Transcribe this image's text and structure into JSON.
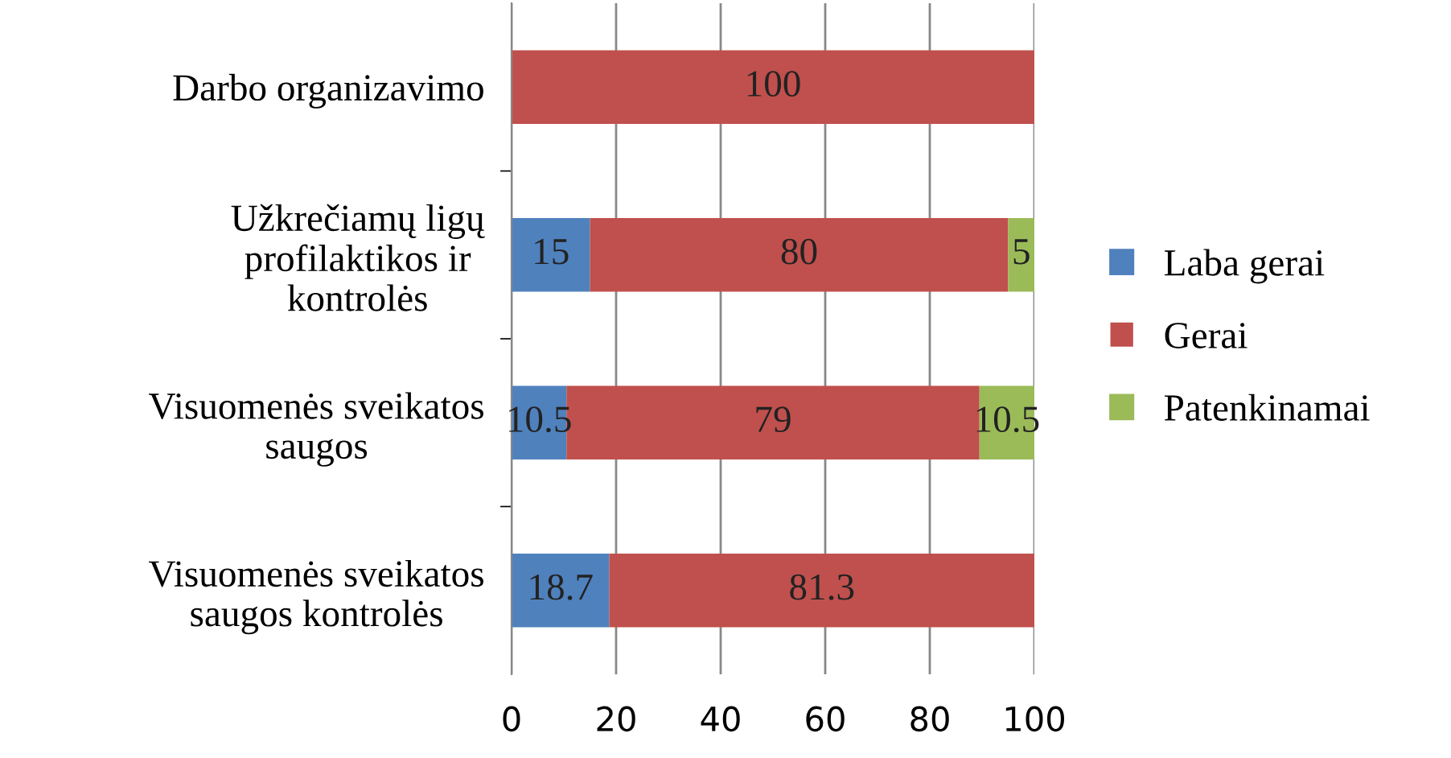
{
  "chart_data": {
    "type": "bar",
    "orientation": "horizontal",
    "stacked": true,
    "data_labels": true,
    "grid": "x",
    "legend": "right",
    "categories": [
      "Darbo organizavimo",
      "Užkrečiamų ligų\nprofilaktikos ir\nkontrolės",
      "Visuomenės sveikatos\nsaugos",
      "Visuomenės sveikatos\nsaugos kontrolės"
    ],
    "series": [
      {
        "name": "Laba gerai",
        "color": "#4f81bd",
        "values": [
          null,
          15,
          10.5,
          18.7
        ]
      },
      {
        "name": "Gerai",
        "color": "#c0504d",
        "values": [
          100,
          80,
          79,
          81.3
        ]
      },
      {
        "name": "Patenkinamai",
        "color": "#9bbb59",
        "values": [
          null,
          5,
          10.5,
          null
        ]
      }
    ],
    "xlim": [
      0,
      100
    ],
    "xticks": [
      0,
      20,
      40,
      60,
      80,
      100
    ]
  }
}
